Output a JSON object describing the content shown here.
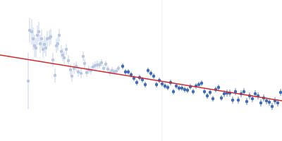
{
  "chart_data": {
    "type": "scatter",
    "xlim": [
      0,
      400
    ],
    "ylim": [
      200,
      0
    ],
    "tick_labels": false,
    "grid": false,
    "series": [
      {
        "type": "line",
        "color": "#e8eef7",
        "line_style": "solid",
        "x": [
          230,
          230
        ],
        "values": [
          0,
          200
        ]
      },
      {
        "type": "scatter",
        "color": "#b8c8e4",
        "marker": "circle",
        "x": [
          40,
          42,
          45,
          47,
          49,
          51,
          53,
          55,
          57,
          59,
          61,
          63,
          65,
          67,
          70,
          72,
          75,
          78,
          80,
          82,
          84,
          87,
          89,
          91,
          94,
          97,
          100,
          102,
          105,
          108,
          111,
          115,
          118,
          120,
          123,
          126,
          129,
          132,
          135,
          138,
          141,
          144,
          147,
          150,
          153,
          156,
          159,
          162,
          165,
          168
        ],
        "values": [
          115,
          43,
          45,
          55,
          65,
          68,
          50,
          45,
          62,
          55,
          70,
          63,
          68,
          55,
          54,
          52,
          85,
          107,
          65,
          62,
          50,
          73,
          78,
          82,
          70,
          86,
          99,
          108,
          97,
          94,
          102,
          104,
          80,
          90,
          103,
          99,
          100,
          95,
          93,
          92,
          92,
          89,
          97,
          91,
          98,
          103,
          100,
          102,
          101,
          97
        ],
        "error": [
          40,
          18,
          18,
          16,
          16,
          14,
          14,
          14,
          13,
          13,
          12,
          12,
          12,
          11,
          11,
          11,
          10,
          10,
          10,
          10,
          9,
          9,
          9,
          9,
          8,
          8,
          8,
          8,
          8,
          7,
          7,
          7,
          7,
          7,
          6,
          6,
          6,
          6,
          6,
          6,
          5,
          5,
          5,
          5,
          5,
          5,
          5,
          4,
          4,
          4
        ]
      },
      {
        "type": "scatter",
        "color": "#3f6cb4",
        "marker": "circle",
        "x": [
          174,
          178,
          182,
          186,
          190,
          194,
          198,
          202,
          206,
          210,
          214,
          218,
          222,
          226,
          230,
          234,
          238,
          242,
          246,
          250,
          254,
          258,
          262,
          266,
          270,
          274,
          278,
          282,
          286,
          290,
          294,
          298,
          302,
          306,
          310,
          314,
          318,
          322,
          326,
          330,
          334,
          338,
          342,
          346,
          350,
          354,
          358,
          362,
          366,
          370,
          374,
          378,
          382,
          386,
          390,
          394,
          398
        ],
        "values": [
          94,
          102,
          102,
          106,
          111,
          117,
          110,
          113,
          120,
          100,
          104,
          108,
          120,
          114,
          119,
          122,
          124,
          117,
          130,
          122,
          125,
          125,
          127,
          128,
          123,
          130,
          122,
          120,
          118,
          130,
          136,
          131,
          140,
          127,
          124,
          139,
          133,
          132,
          132,
          142,
          130,
          142,
          133,
          130,
          144,
          136,
          140,
          133,
          136,
          146,
          139,
          143,
          145,
          151,
          143,
          146,
          131
        ],
        "error": [
          4,
          4,
          4,
          4,
          4,
          4,
          4,
          4,
          4,
          4,
          4,
          4,
          4,
          4,
          4,
          4,
          4,
          4,
          4,
          4,
          4,
          4,
          4,
          4,
          4,
          4,
          4,
          4,
          4,
          4,
          4,
          4,
          4,
          4,
          4,
          4,
          5,
          5,
          5,
          5,
          5,
          5,
          5,
          5,
          5,
          5,
          5,
          5,
          5,
          5,
          5,
          5,
          5,
          5,
          5,
          5,
          5
        ]
      },
      {
        "type": "line",
        "color": "#d62728",
        "line_style": "solid",
        "x": [
          0,
          400
        ],
        "values": [
          78,
          143
        ]
      }
    ]
  }
}
